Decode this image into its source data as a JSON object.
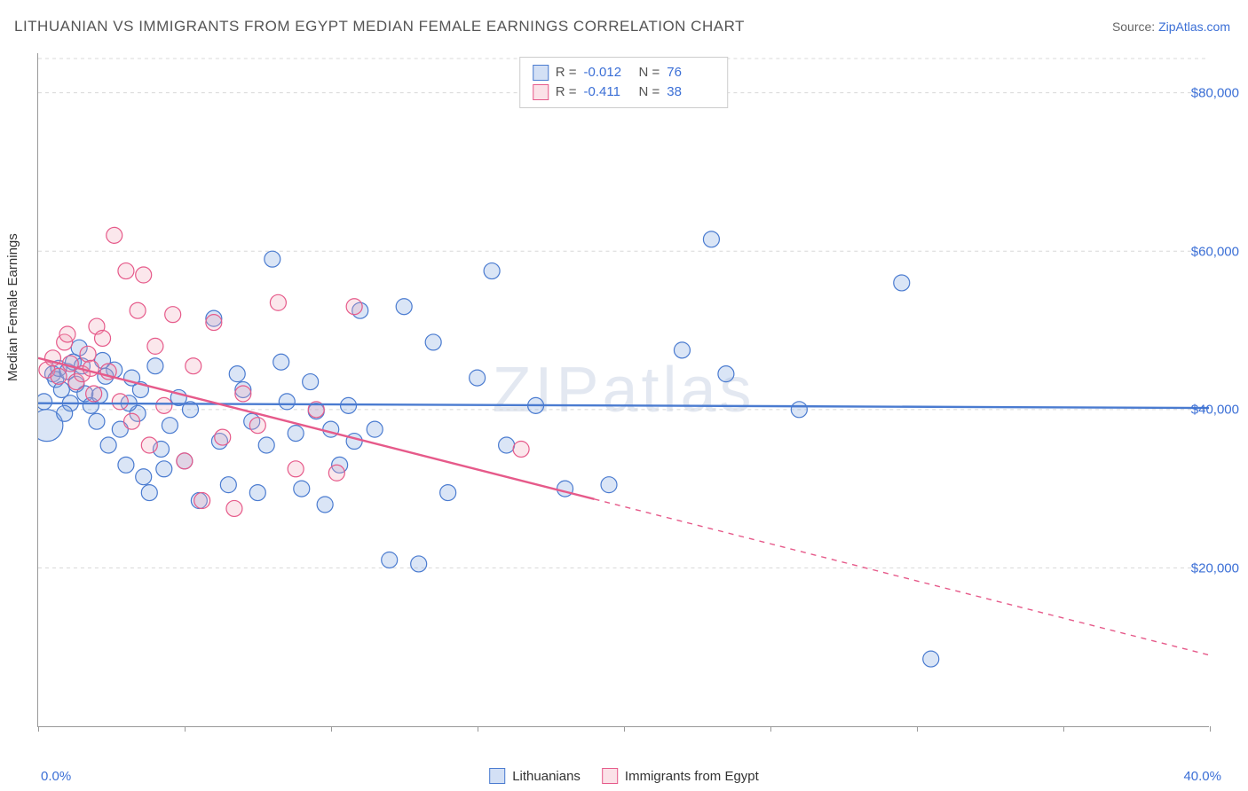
{
  "title": "LITHUANIAN VS IMMIGRANTS FROM EGYPT MEDIAN FEMALE EARNINGS CORRELATION CHART",
  "source_label": "Source: ",
  "source_link_text": "ZipAtlas.com",
  "watermark": "ZIPatlas",
  "y_axis_label": "Median Female Earnings",
  "chart": {
    "type": "scatter",
    "background_color": "#ffffff",
    "grid_color": "#d8d8d8",
    "axis_color": "#999999",
    "x_min": 0.0,
    "x_max": 40.0,
    "x_tick_step": 5.0,
    "x_tick_labels": {
      "start": "0.0%",
      "end": "40.0%"
    },
    "y_min": 0,
    "y_max": 85000,
    "y_gridlines": [
      20000,
      40000,
      60000,
      80000
    ],
    "y_tick_labels": [
      "$20,000",
      "$40,000",
      "$60,000",
      "$80,000"
    ],
    "marker_radius": 9,
    "marker_stroke_width": 1.2,
    "marker_fill_opacity": 0.28,
    "trend_line_width": 2.4,
    "series": [
      {
        "name": "Lithuanians",
        "color_fill": "#7ba3e0",
        "color_stroke": "#4a7bd0",
        "stats": {
          "R_label": "R =",
          "R": "-0.012",
          "N_label": "N =",
          "N": "76"
        },
        "trend": {
          "y_at_xmin": 40800,
          "y_at_xmax": 40200,
          "x_solid_end": 40.0
        },
        "points": [
          [
            0.2,
            41000
          ],
          [
            0.3,
            38000,
            18
          ],
          [
            0.5,
            44500
          ],
          [
            0.6,
            43800
          ],
          [
            0.7,
            45200
          ],
          [
            0.8,
            42500
          ],
          [
            1.0,
            44800
          ],
          [
            1.2,
            46000
          ],
          [
            1.3,
            43200
          ],
          [
            1.5,
            45500
          ],
          [
            1.6,
            42000
          ],
          [
            1.8,
            40500
          ],
          [
            2.0,
            38500
          ],
          [
            2.2,
            46200
          ],
          [
            2.4,
            35500
          ],
          [
            2.6,
            45000
          ],
          [
            2.8,
            37500
          ],
          [
            3.0,
            33000
          ],
          [
            3.2,
            44000
          ],
          [
            3.4,
            39500
          ],
          [
            3.6,
            31500
          ],
          [
            3.8,
            29500
          ],
          [
            4.0,
            45500
          ],
          [
            4.2,
            35000
          ],
          [
            4.5,
            38000
          ],
          [
            4.8,
            41500
          ],
          [
            5.0,
            33500
          ],
          [
            5.5,
            28500
          ],
          [
            6.0,
            51500
          ],
          [
            6.2,
            36000
          ],
          [
            6.5,
            30500
          ],
          [
            7.0,
            42500
          ],
          [
            7.3,
            38500
          ],
          [
            7.5,
            29500
          ],
          [
            8.0,
            59000
          ],
          [
            8.3,
            46000
          ],
          [
            8.5,
            41000
          ],
          [
            8.8,
            37000
          ],
          [
            9.0,
            30000
          ],
          [
            9.5,
            39800
          ],
          [
            9.8,
            28000
          ],
          [
            10.0,
            37500
          ],
          [
            10.3,
            33000
          ],
          [
            10.6,
            40500
          ],
          [
            11.0,
            52500
          ],
          [
            11.5,
            37500
          ],
          [
            12.0,
            21000
          ],
          [
            12.5,
            53000
          ],
          [
            13.0,
            20500
          ],
          [
            13.5,
            48500
          ],
          [
            14.0,
            29500
          ],
          [
            15.0,
            44000
          ],
          [
            15.5,
            57500
          ],
          [
            16.0,
            35500
          ],
          [
            17.0,
            40500
          ],
          [
            18.0,
            30000
          ],
          [
            19.5,
            30500
          ],
          [
            22.0,
            47500
          ],
          [
            23.0,
            61500
          ],
          [
            23.5,
            44500
          ],
          [
            26.0,
            40000
          ],
          [
            29.5,
            56000
          ],
          [
            30.5,
            8500
          ],
          [
            1.4,
            47800
          ],
          [
            2.1,
            41800
          ],
          [
            3.5,
            42500
          ],
          [
            4.3,
            32500
          ],
          [
            5.2,
            40000
          ],
          [
            6.8,
            44500
          ],
          [
            7.8,
            35500
          ],
          [
            9.3,
            43500
          ],
          [
            10.8,
            36000
          ],
          [
            1.1,
            40800
          ],
          [
            0.9,
            39500
          ],
          [
            2.3,
            44200
          ],
          [
            3.1,
            40800
          ]
        ]
      },
      {
        "name": "Immigrants from Egypt",
        "color_fill": "#f2a8bb",
        "color_stroke": "#e65a8a",
        "stats": {
          "R_label": "R =",
          "R": "-0.411",
          "N_label": "N =",
          "N": "38"
        },
        "trend": {
          "y_at_xmin": 46500,
          "y_at_xmax": 9000,
          "x_solid_end": 19.0
        },
        "points": [
          [
            0.3,
            45000
          ],
          [
            0.5,
            46500
          ],
          [
            0.7,
            44200
          ],
          [
            0.9,
            48500
          ],
          [
            1.1,
            45800
          ],
          [
            1.3,
            43500
          ],
          [
            1.5,
            44500
          ],
          [
            1.7,
            47000
          ],
          [
            1.9,
            42000
          ],
          [
            2.0,
            50500
          ],
          [
            2.2,
            49000
          ],
          [
            2.4,
            44800
          ],
          [
            2.6,
            62000
          ],
          [
            2.8,
            41000
          ],
          [
            3.0,
            57500
          ],
          [
            3.2,
            38500
          ],
          [
            3.4,
            52500
          ],
          [
            3.6,
            57000
          ],
          [
            3.8,
            35500
          ],
          [
            4.0,
            48000
          ],
          [
            4.3,
            40500
          ],
          [
            4.6,
            52000
          ],
          [
            5.0,
            33500
          ],
          [
            5.3,
            45500
          ],
          [
            5.6,
            28500
          ],
          [
            6.0,
            51000
          ],
          [
            6.3,
            36500
          ],
          [
            6.7,
            27500
          ],
          [
            7.0,
            42000
          ],
          [
            7.5,
            38000
          ],
          [
            8.2,
            53500
          ],
          [
            8.8,
            32500
          ],
          [
            9.5,
            40000
          ],
          [
            10.2,
            32000
          ],
          [
            10.8,
            53000
          ],
          [
            16.5,
            35000
          ],
          [
            1.0,
            49500
          ],
          [
            1.8,
            45200
          ]
        ]
      }
    ],
    "bottom_legend": [
      {
        "label": "Lithuanians",
        "fill": "#7ba3e0",
        "stroke": "#4a7bd0"
      },
      {
        "label": "Immigrants from Egypt",
        "fill": "#f2a8bb",
        "stroke": "#e65a8a"
      }
    ]
  }
}
